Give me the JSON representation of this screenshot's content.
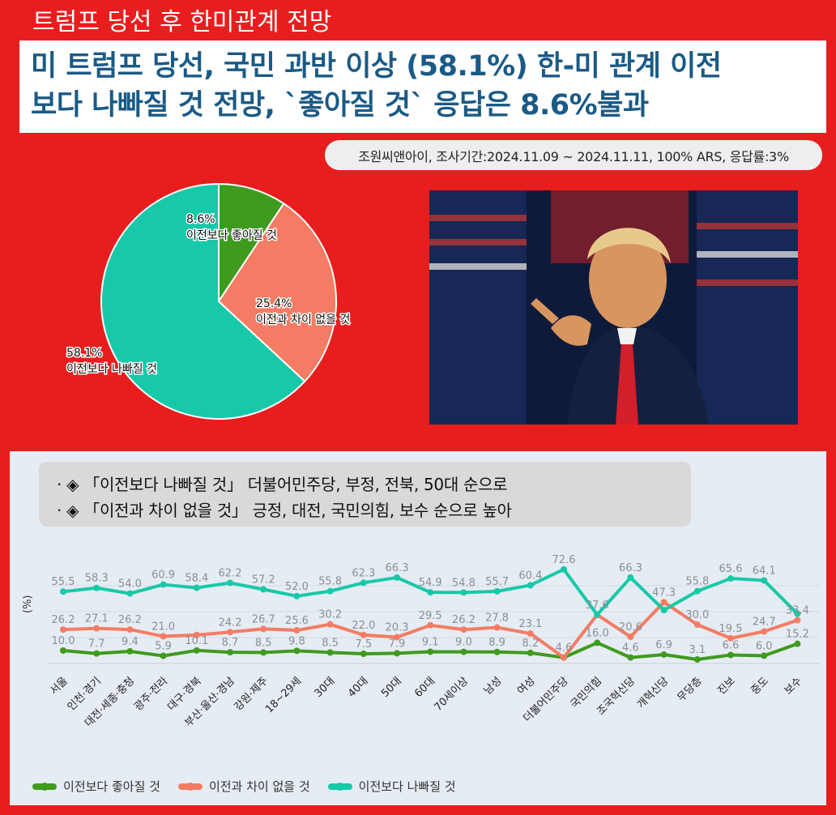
{
  "banner_title": "트럼프 당선 후 한미관계 전망",
  "headline": {
    "line1": "미 트럼프 당선, 국민 과반 이상 (58.1%) 한-미 관계 이전",
    "line2": "보다 나빠질 것 전망, `좋아질 것` 응답은 8.6%불과"
  },
  "survey_info": "조원씨앤아이, 조사기간:2024.11.09 ~ 2024.11.11, 100% ARS, 응답률:3%",
  "notes": [
    "· ◈ 「이전보다 나빠질 것」 더불어민주당, 부정, 전북, 50대 순으로",
    "· ◈ 「이전과 차이 없을 것」 긍정, 대전, 국민의힘, 보수 순으로 높아"
  ],
  "colors": {
    "green": "#3f9b1e",
    "salmon": "#f47c64",
    "teal": "#17c9a8",
    "red": "#e81e1e",
    "navy": "#1a5a86"
  },
  "chart_data": [
    {
      "type": "pie",
      "slices": [
        {
          "label": "이전보다 좋아질 것",
          "value": 8.6,
          "value_label": "8.6%",
          "color": "#3f9b1e"
        },
        {
          "label": "이전과 차이 없을 것",
          "value": 25.4,
          "value_label": "25.4%",
          "color": "#f47c64"
        },
        {
          "label": "이전보다 나빠질 것",
          "value": 58.1,
          "value_label": "58.1%",
          "color": "#17c9a8"
        }
      ]
    },
    {
      "type": "line",
      "ylabel": "(%)",
      "ylim": [
        0,
        80
      ],
      "grid": true,
      "legend_position": "bottom-left",
      "categories": [
        "서울",
        "인천·경기",
        "대전·세종·충청",
        "광주·전라",
        "대구·경북",
        "부산·울산·경남",
        "강원·제주",
        "18~29세",
        "30대",
        "40대",
        "50대",
        "60대",
        "70세이상",
        "남성",
        "여성",
        "더불어민주당",
        "국민의힘",
        "조국혁신당",
        "개혁신당",
        "무당층",
        "진보",
        "중도",
        "보수"
      ],
      "series": [
        {
          "name": "이전보다 좋아질 것",
          "color": "#3f9b1e",
          "values": [
            10.0,
            7.7,
            9.4,
            5.9,
            10.1,
            8.7,
            8.5,
            9.8,
            8.5,
            7.5,
            7.9,
            9.1,
            9.0,
            8.9,
            8.2,
            4.6,
            16.0,
            4.6,
            6.9,
            3.1,
            6.6,
            6.0,
            15.2
          ],
          "labels": [
            "10.0",
            "7.7",
            "9.4",
            "5.9",
            "10.1",
            "8.7",
            "8.5",
            "9.8",
            "8.5",
            "7.5",
            "7.9",
            "9.1",
            "9.0",
            "8.9",
            "8.2",
            "4.6",
            "16.0",
            "4.6",
            "6.9",
            "3.1",
            "6.6",
            "6.0",
            "15.2"
          ]
        },
        {
          "name": "이전과 차이 없을 것",
          "color": "#f47c64",
          "values": [
            26.2,
            27.1,
            26.2,
            21.0,
            22.0,
            24.2,
            26.7,
            25.6,
            30.2,
            22.0,
            20.3,
            29.5,
            26.2,
            27.8,
            23.1,
            4.6,
            37.6,
            20.6,
            47.3,
            30.0,
            19.5,
            24.7,
            33.4
          ],
          "labels": [
            "26.2",
            "27.1",
            "26.2",
            "21.0",
            "",
            "24.2",
            "26.7",
            "25.6",
            "30.2",
            "22.0",
            "20.3",
            "29.5",
            "26.2",
            "27.8",
            "23.1",
            "",
            "37.6",
            "20.6",
            "47.3",
            "30.0",
            "19.5",
            "24.7",
            "33.4"
          ]
        },
        {
          "name": "이전보다 나빠질 것",
          "color": "#17c9a8",
          "values": [
            55.5,
            58.3,
            54.0,
            60.9,
            58.4,
            62.2,
            57.2,
            52.0,
            55.8,
            62.3,
            66.3,
            54.9,
            54.8,
            55.7,
            60.4,
            72.6,
            37.6,
            66.3,
            41.2,
            55.8,
            65.6,
            64.1,
            38.4
          ],
          "labels": [
            "55.5",
            "58.3",
            "54.0",
            "60.9",
            "58.4",
            "62.2",
            "57.2",
            "52.0",
            "55.8",
            "62.3",
            "66.3",
            "54.9",
            "54.8",
            "55.7",
            "60.4",
            "72.6",
            "",
            "66.3",
            "",
            "55.8",
            "65.6",
            "64.1",
            ""
          ]
        }
      ]
    }
  ]
}
